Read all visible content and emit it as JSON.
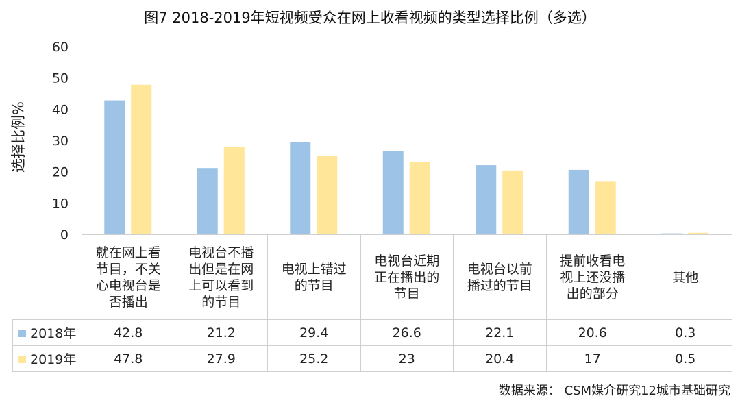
{
  "colors": {
    "series_2018": "#9dc3e6",
    "series_2019": "#ffe699",
    "axis": "#bfbfbf",
    "border": "#cfcfcf"
  },
  "chart_data": {
    "type": "bar",
    "title": "图7  2018-2019年短视频受众在网上收看视频的类型选择比例（多选）",
    "ylabel": "选择比例%",
    "xlabel": "",
    "ylim": [
      0,
      60
    ],
    "yticks": [
      0,
      10,
      20,
      30,
      40,
      50,
      60
    ],
    "grid": false,
    "legend": "inside data table, left of rows",
    "categories": [
      "就在网上看节目，不关心电视台是否播出",
      "电视台不播出但是在网上可以看到的节目",
      "电视上错过的节目",
      "电视台近期正在播出的节目",
      "电视台以前播过的节目",
      "提前收看电视上还没播出的部分",
      "其他"
    ],
    "category_lines": [
      [
        "就在网上看",
        "节目，不关",
        "心电视台是",
        "否播出"
      ],
      [
        "电视台不播",
        "出但是在网",
        "上可以看到",
        "的节目"
      ],
      [
        "电视上错过",
        "的节目"
      ],
      [
        "电视台近期",
        "正在播出的",
        "节目"
      ],
      [
        "电视台以前",
        "播过的节目"
      ],
      [
        "提前收看电",
        "视上还没播",
        "出的部分"
      ],
      [
        "其他"
      ]
    ],
    "series": [
      {
        "name": "2018年",
        "values": [
          42.8,
          21.2,
          29.4,
          26.6,
          22.1,
          20.6,
          0.3
        ]
      },
      {
        "name": "2019年",
        "values": [
          47.8,
          27.9,
          25.2,
          23,
          20.4,
          17,
          0.5
        ]
      }
    ]
  },
  "source": "数据来源：  CSM媒介研究12城市基础研究"
}
